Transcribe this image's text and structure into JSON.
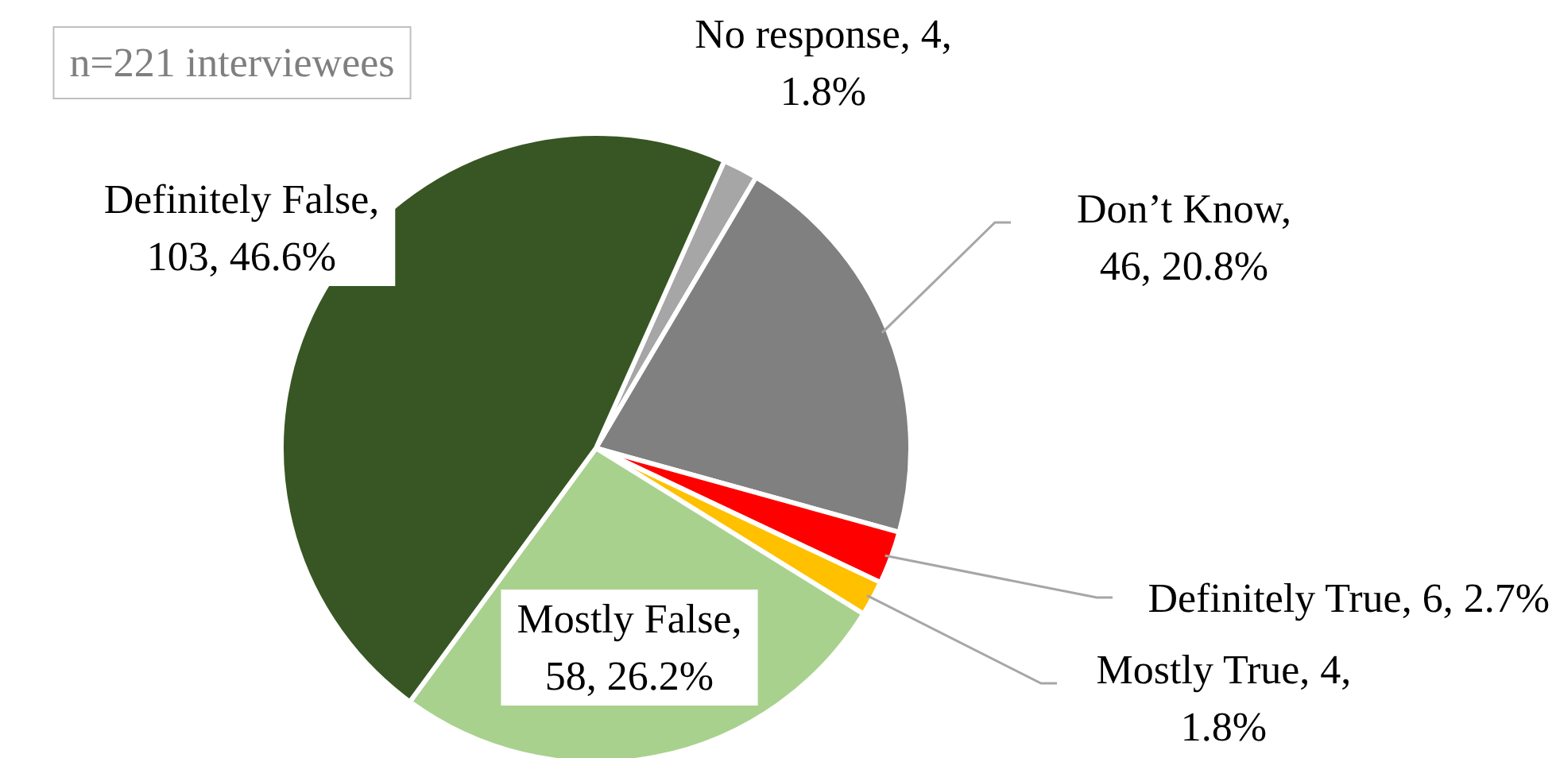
{
  "chart_data": {
    "type": "pie",
    "categories": [
      "No response",
      "Don’t Know",
      "Definitely True",
      "Mostly True",
      "Mostly False",
      "Definitely False"
    ],
    "values": [
      4,
      46,
      6,
      4,
      58,
      103
    ],
    "value_labels": [
      ", 4, 1.8%",
      ", 46, 20.8%",
      ", 6, 2.7%",
      ", 4, 1.8%",
      ", 58, 26.2%",
      ", 103, 46.6%"
    ],
    "colors": [
      "#a6a6a6",
      "#808080",
      "#ff0000",
      "#ffc000",
      "#a9d18e",
      "#375623"
    ],
    "annotations": [
      "n=221 interviewees"
    ]
  }
}
